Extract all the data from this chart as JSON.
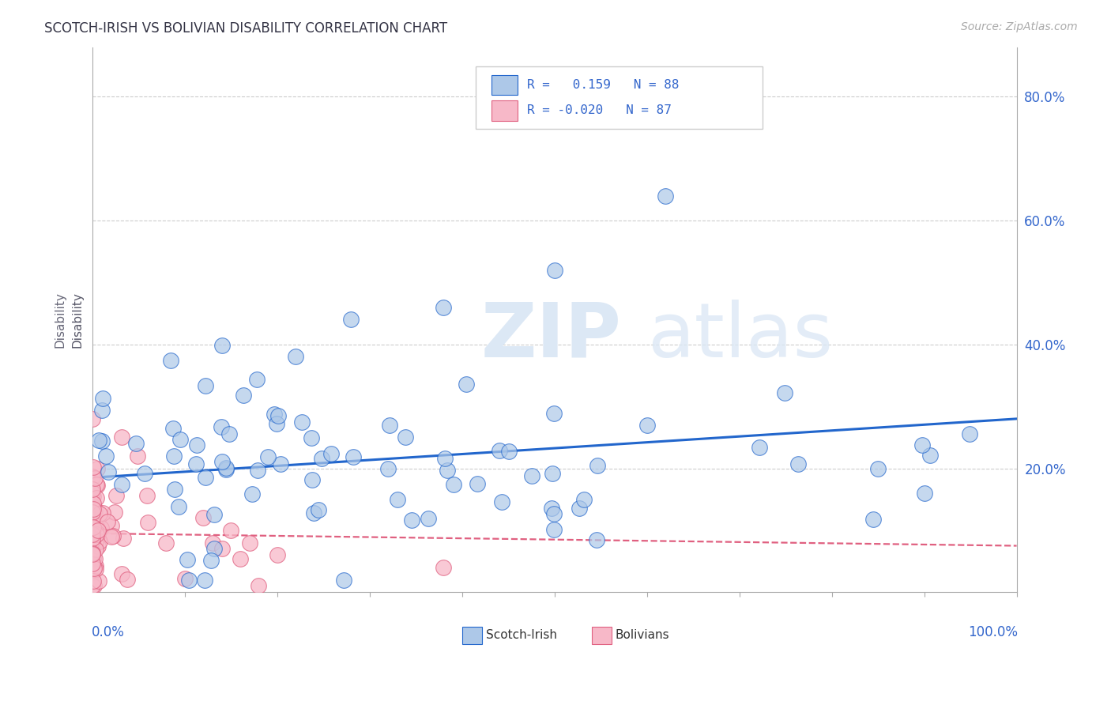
{
  "title": "SCOTCH-IRISH VS BOLIVIAN DISABILITY CORRELATION CHART",
  "source_text": "Source: ZipAtlas.com",
  "ylabel": "Disability",
  "x_min": 0.0,
  "x_max": 1.0,
  "y_min": 0.0,
  "y_max": 0.88,
  "y_ticks": [
    0.2,
    0.4,
    0.6,
    0.8
  ],
  "y_tick_labels": [
    "20.0%",
    "40.0%",
    "60.0%",
    "80.0%"
  ],
  "blue_color": "#adc8e8",
  "pink_color": "#f7b8c8",
  "line_blue": "#2266cc",
  "line_pink": "#e06080",
  "title_color": "#333344",
  "axis_label_color": "#3366cc",
  "scotch_irish_r": 0.159,
  "scotch_irish_n": 88,
  "bolivian_r": -0.02,
  "bolivian_n": 87,
  "si_intercept": 0.185,
  "si_slope": 0.095,
  "bo_intercept": 0.095,
  "bo_slope": -0.02
}
